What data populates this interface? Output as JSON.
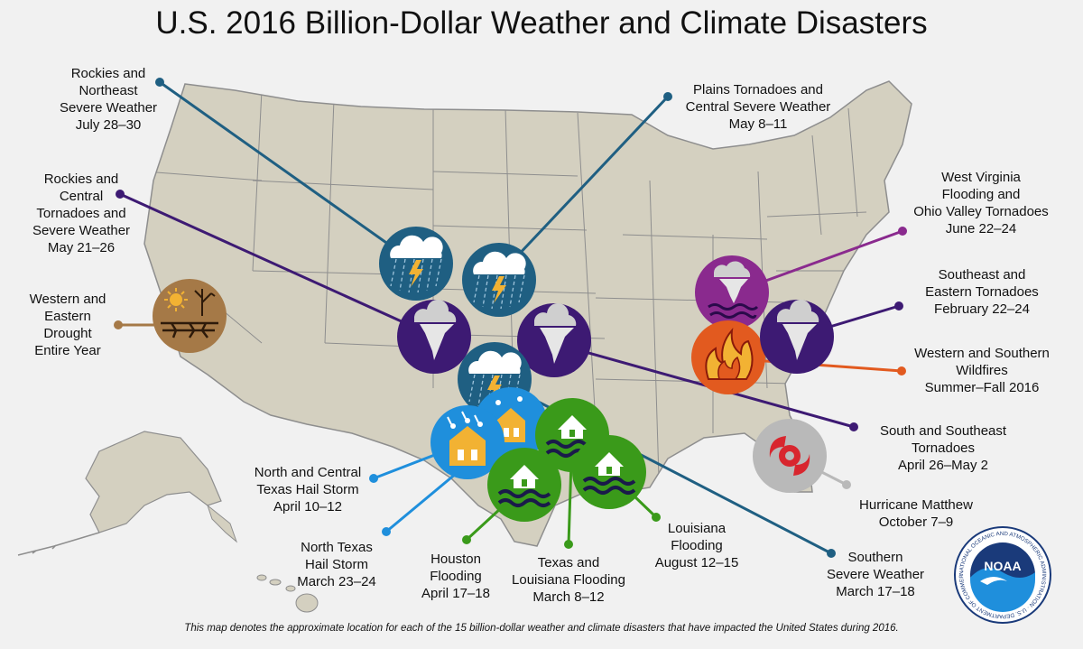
{
  "title": "U.S. 2016 Billion-Dollar Weather and Climate Disasters",
  "footnote": "This map denotes the approximate location for each of the 15 billion-dollar weather and climate disasters that have impacted the United States during 2016.",
  "colors": {
    "background": "#f1f1f1",
    "land": "#d4d0c0",
    "state_border": "#8e8e8e",
    "severe_weather": "#1f5f82",
    "tornado": "#3d1a73",
    "wildfire": "#e25a1f",
    "drought": "#a57947",
    "hail": "#1f8fdc",
    "flooding": "#3a9a1a",
    "hurricane": "#b9b9b9",
    "wv_flood_tornado": "#8a2a8e"
  },
  "events": [
    {
      "id": "rockies-northeast-severe",
      "lines": [
        "Rockies and",
        "Northeast",
        "Severe Weather",
        "July 28–30"
      ],
      "icon": "storm-cloud-icon",
      "color": "#1f5f82"
    },
    {
      "id": "plains-tornadoes-central-severe",
      "lines": [
        "Plains Tornadoes and",
        "Central Severe Weather",
        "May 8–11"
      ],
      "icon": "storm-cloud-icon",
      "color": "#1f5f82"
    },
    {
      "id": "rockies-central-tornadoes",
      "lines": [
        "Rockies and",
        "Central",
        "Tornadoes and",
        "Severe Weather",
        "May 21–26"
      ],
      "icon": "tornado-icon",
      "color": "#3d1a73"
    },
    {
      "id": "western-eastern-drought",
      "lines": [
        "Western and",
        "Eastern",
        "Drought",
        "Entire Year"
      ],
      "icon": "drought-icon",
      "color": "#a57947"
    },
    {
      "id": "wv-flooding-ohio-tornadoes",
      "lines": [
        "West Virginia",
        "Flooding and",
        "Ohio Valley Tornadoes",
        "June 22–24"
      ],
      "icon": "tornado-flood-icon",
      "color": "#8a2a8e"
    },
    {
      "id": "southeast-eastern-tornadoes",
      "lines": [
        "Southeast and",
        "Eastern Tornadoes",
        "February 22–24"
      ],
      "icon": "tornado-icon",
      "color": "#3d1a73"
    },
    {
      "id": "western-southern-wildfires",
      "lines": [
        "Western and Southern",
        "Wildfires",
        "Summer–Fall 2016"
      ],
      "icon": "wildfire-icon",
      "color": "#e25a1f"
    },
    {
      "id": "south-southeast-tornadoes",
      "lines": [
        "South and Southeast",
        "Tornadoes",
        "April 26–May 2"
      ],
      "icon": "tornado-icon",
      "color": "#3d1a73"
    },
    {
      "id": "hurricane-matthew",
      "lines": [
        "Hurricane Matthew",
        "October 7–9"
      ],
      "icon": "hurricane-icon",
      "color": "#b9b9b9"
    },
    {
      "id": "southern-severe-weather",
      "lines": [
        "Southern",
        "Severe Weather",
        "March 17–18"
      ],
      "icon": "storm-cloud-icon",
      "color": "#1f5f82"
    },
    {
      "id": "louisiana-flooding",
      "lines": [
        "Louisiana",
        "Flooding",
        "August 12–15"
      ],
      "icon": "flood-house-icon",
      "color": "#3a9a1a"
    },
    {
      "id": "texas-louisiana-flooding",
      "lines": [
        "Texas and",
        "Louisiana Flooding",
        "March 8–12"
      ],
      "icon": "flood-house-icon",
      "color": "#3a9a1a"
    },
    {
      "id": "houston-flooding",
      "lines": [
        "Houston",
        "Flooding",
        "April 17–18"
      ],
      "icon": "flood-house-icon",
      "color": "#3a9a1a"
    },
    {
      "id": "north-texas-hail",
      "lines": [
        "North Texas",
        "Hail Storm",
        "March 23–24"
      ],
      "icon": "hail-house-icon",
      "color": "#1f8fdc"
    },
    {
      "id": "north-central-texas-hail",
      "lines": [
        "North and Central",
        "Texas Hail Storm",
        "April 10–12"
      ],
      "icon": "hail-house-icon",
      "color": "#1f8fdc"
    }
  ],
  "logo": {
    "name": "NOAA",
    "ring_text": "NATIONAL OCEANIC AND ATMOSPHERIC ADMINISTRATION · U.S. DEPARTMENT OF COMMERCE"
  }
}
